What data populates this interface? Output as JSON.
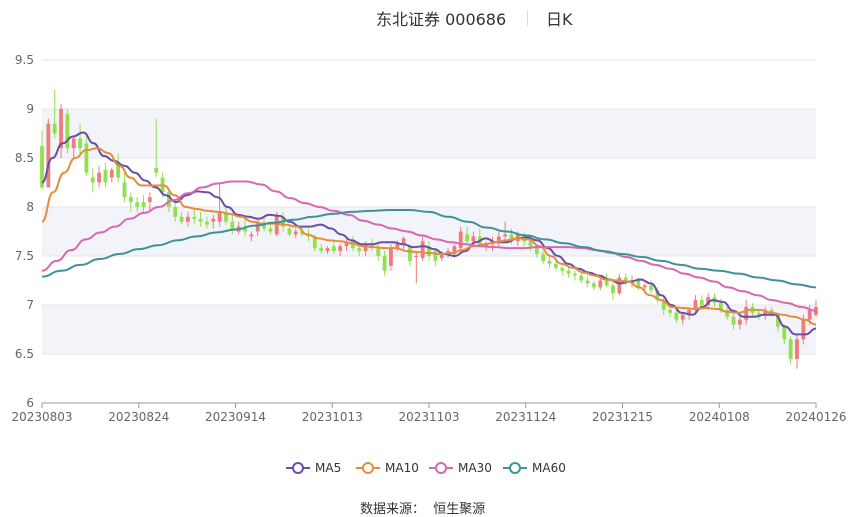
{
  "header": {
    "title": "东北证券 000686",
    "period": "日K"
  },
  "footer": {
    "source": "数据来源：  恒生聚源"
  },
  "colors": {
    "up": "#ef7b7b",
    "down": "#91e04d",
    "band": "#f3f4f9",
    "grid": "#e6e6e6",
    "ma5": "#6b4ea8",
    "ma10": "#e38e3a",
    "ma30": "#d769b4",
    "ma60": "#3f9296"
  },
  "chart_data": {
    "type": "candlestick",
    "title": "东北证券 000686 日K",
    "ylim": [
      6,
      9.5
    ],
    "y_ticks": [
      "9.5",
      "9",
      "8.5",
      "8",
      "7.5",
      "7",
      "6.5",
      "6"
    ],
    "x_ticks": [
      "20230803",
      "20230824",
      "20230914",
      "20231013",
      "20231103",
      "20231124",
      "20231215",
      "20240108",
      "20240126"
    ],
    "legend": [
      "MA5",
      "MA10",
      "MA30",
      "MA60"
    ],
    "legend_position": "bottom",
    "grid": true,
    "candles_ohlc": [
      [
        8.62,
        8.78,
        8.18,
        8.2
      ],
      [
        8.2,
        8.9,
        8.2,
        8.85
      ],
      [
        8.85,
        9.2,
        8.7,
        8.75
      ],
      [
        8.6,
        9.05,
        8.5,
        9.0
      ],
      [
        8.95,
        9.0,
        8.55,
        8.6
      ],
      [
        8.6,
        8.72,
        8.5,
        8.7
      ],
      [
        8.7,
        8.85,
        8.55,
        8.6
      ],
      [
        8.65,
        8.72,
        8.32,
        8.35
      ],
      [
        8.3,
        8.4,
        8.15,
        8.25
      ],
      [
        8.25,
        8.42,
        8.2,
        8.35
      ],
      [
        8.38,
        8.45,
        8.2,
        8.25
      ],
      [
        8.3,
        8.4,
        8.25,
        8.38
      ],
      [
        8.45,
        8.55,
        8.25,
        8.3
      ],
      [
        8.25,
        8.35,
        8.05,
        8.1
      ],
      [
        8.1,
        8.15,
        7.95,
        8.05
      ],
      [
        8.05,
        8.1,
        7.95,
        8.0
      ],
      [
        8.05,
        8.12,
        7.95,
        8.0
      ],
      [
        8.05,
        8.15,
        7.95,
        8.1
      ],
      [
        8.4,
        8.9,
        8.3,
        8.35
      ],
      [
        8.3,
        8.35,
        8.1,
        8.15
      ],
      [
        8.15,
        8.2,
        7.95,
        8.0
      ],
      [
        8.0,
        8.05,
        7.85,
        7.9
      ],
      [
        7.9,
        7.95,
        7.82,
        7.85
      ],
      [
        7.85,
        7.95,
        7.8,
        7.9
      ],
      [
        7.9,
        7.98,
        7.82,
        7.88
      ],
      [
        7.88,
        7.95,
        7.8,
        7.85
      ],
      [
        7.85,
        7.9,
        7.78,
        7.82
      ],
      [
        7.85,
        7.92,
        7.78,
        7.88
      ],
      [
        7.85,
        8.25,
        7.8,
        7.95
      ],
      [
        7.95,
        8.0,
        7.82,
        7.85
      ],
      [
        7.85,
        7.92,
        7.72,
        7.78
      ],
      [
        7.75,
        7.85,
        7.72,
        7.8
      ],
      [
        7.8,
        7.88,
        7.7,
        7.75
      ],
      [
        7.7,
        7.75,
        7.65,
        7.72
      ],
      [
        7.75,
        7.88,
        7.7,
        7.85
      ],
      [
        7.82,
        7.9,
        7.75,
        7.78
      ],
      [
        7.78,
        7.85,
        7.72,
        7.75
      ],
      [
        7.72,
        7.95,
        7.7,
        7.92
      ],
      [
        7.9,
        7.95,
        7.75,
        7.8
      ],
      [
        7.78,
        7.82,
        7.7,
        7.72
      ],
      [
        7.72,
        7.78,
        7.68,
        7.75
      ],
      [
        7.75,
        7.8,
        7.7,
        7.72
      ],
      [
        7.72,
        7.78,
        7.65,
        7.7
      ],
      [
        7.7,
        7.72,
        7.55,
        7.58
      ],
      [
        7.58,
        7.62,
        7.52,
        7.55
      ],
      [
        7.55,
        7.6,
        7.52,
        7.58
      ],
      [
        7.6,
        7.65,
        7.52,
        7.55
      ],
      [
        7.55,
        7.62,
        7.5,
        7.6
      ],
      [
        7.6,
        7.68,
        7.55,
        7.65
      ],
      [
        7.65,
        7.7,
        7.55,
        7.58
      ],
      [
        7.58,
        7.62,
        7.5,
        7.55
      ],
      [
        7.55,
        7.65,
        7.5,
        7.62
      ],
      [
        7.62,
        7.68,
        7.55,
        7.6
      ],
      [
        7.58,
        7.62,
        7.45,
        7.5
      ],
      [
        7.5,
        7.55,
        7.3,
        7.35
      ],
      [
        7.4,
        7.62,
        7.35,
        7.58
      ],
      [
        7.58,
        7.66,
        7.55,
        7.62
      ],
      [
        7.62,
        7.7,
        7.55,
        7.68
      ],
      [
        7.6,
        7.62,
        7.4,
        7.45
      ],
      [
        7.5,
        7.55,
        7.22,
        7.5
      ],
      [
        7.48,
        7.7,
        7.45,
        7.65
      ],
      [
        7.6,
        7.65,
        7.45,
        7.5
      ],
      [
        7.55,
        7.58,
        7.4,
        7.45
      ],
      [
        7.48,
        7.55,
        7.45,
        7.52
      ],
      [
        7.52,
        7.58,
        7.48,
        7.55
      ],
      [
        7.52,
        7.62,
        7.48,
        7.6
      ],
      [
        7.58,
        7.8,
        7.55,
        7.75
      ],
      [
        7.72,
        7.8,
        7.62,
        7.65
      ],
      [
        7.65,
        7.75,
        7.6,
        7.7
      ],
      [
        7.7,
        7.78,
        7.6,
        7.62
      ],
      [
        7.6,
        7.65,
        7.55,
        7.62
      ],
      [
        7.62,
        7.7,
        7.55,
        7.65
      ],
      [
        7.65,
        7.75,
        7.6,
        7.7
      ],
      [
        7.7,
        7.85,
        7.65,
        7.72
      ],
      [
        7.72,
        7.78,
        7.62,
        7.65
      ],
      [
        7.65,
        7.75,
        7.6,
        7.72
      ],
      [
        7.7,
        7.74,
        7.6,
        7.65
      ],
      [
        7.65,
        7.68,
        7.55,
        7.6
      ],
      [
        7.6,
        7.62,
        7.48,
        7.52
      ],
      [
        7.52,
        7.55,
        7.42,
        7.45
      ],
      [
        7.45,
        7.5,
        7.38,
        7.42
      ],
      [
        7.42,
        7.45,
        7.35,
        7.38
      ],
      [
        7.38,
        7.4,
        7.3,
        7.35
      ],
      [
        7.35,
        7.38,
        7.28,
        7.32
      ],
      [
        7.32,
        7.35,
        7.25,
        7.3
      ],
      [
        7.3,
        7.32,
        7.22,
        7.25
      ],
      [
        7.25,
        7.3,
        7.18,
        7.22
      ],
      [
        7.22,
        7.25,
        7.15,
        7.18
      ],
      [
        7.18,
        7.28,
        7.15,
        7.25
      ],
      [
        7.25,
        7.32,
        7.18,
        7.2
      ],
      [
        7.2,
        7.25,
        7.05,
        7.12
      ],
      [
        7.12,
        7.32,
        7.1,
        7.28
      ],
      [
        7.28,
        7.32,
        7.2,
        7.22
      ],
      [
        7.22,
        7.3,
        7.18,
        7.25
      ],
      [
        7.25,
        7.28,
        7.15,
        7.18
      ],
      [
        7.18,
        7.22,
        7.12,
        7.2
      ],
      [
        7.2,
        7.25,
        7.12,
        7.15
      ],
      [
        7.15,
        7.18,
        7.02,
        7.05
      ],
      [
        7.05,
        7.08,
        6.9,
        6.95
      ],
      [
        6.95,
        7.0,
        6.88,
        6.92
      ],
      [
        6.92,
        6.95,
        6.82,
        6.85
      ],
      [
        6.85,
        6.92,
        6.8,
        6.9
      ],
      [
        6.9,
        6.98,
        6.85,
        6.95
      ],
      [
        6.95,
        7.1,
        6.9,
        7.05
      ],
      [
        7.05,
        7.1,
        6.95,
        7.0
      ],
      [
        7.0,
        7.12,
        6.95,
        7.08
      ],
      [
        7.08,
        7.12,
        6.98,
        7.02
      ],
      [
        7.02,
        7.06,
        6.92,
        6.95
      ],
      [
        6.95,
        6.98,
        6.85,
        6.88
      ],
      [
        6.88,
        6.92,
        6.75,
        6.8
      ],
      [
        6.8,
        6.9,
        6.75,
        6.85
      ],
      [
        6.85,
        7.05,
        6.8,
        6.98
      ],
      [
        6.98,
        7.02,
        6.88,
        6.92
      ],
      [
        6.92,
        6.95,
        6.85,
        6.9
      ],
      [
        6.9,
        6.98,
        6.85,
        6.95
      ],
      [
        6.95,
        6.98,
        6.88,
        6.9
      ],
      [
        6.9,
        6.92,
        6.72,
        6.78
      ],
      [
        6.78,
        6.8,
        6.6,
        6.65
      ],
      [
        6.65,
        6.68,
        6.4,
        6.45
      ],
      [
        6.45,
        6.7,
        6.35,
        6.65
      ],
      [
        6.65,
        6.9,
        6.6,
        6.85
      ],
      [
        6.85,
        7.0,
        6.8,
        6.95
      ],
      [
        6.9,
        7.05,
        6.88,
        6.98
      ]
    ],
    "series": [
      {
        "name": "MA5",
        "values": [
          8.25,
          8.5,
          8.65,
          8.72,
          8.76,
          8.65,
          8.52,
          8.47,
          8.42,
          8.35,
          8.27,
          8.2,
          8.12,
          8.05,
          8.12,
          8.16,
          8.15,
          8.1,
          8.0,
          7.92,
          7.9,
          7.88,
          7.92,
          7.91,
          7.85,
          7.8,
          7.8,
          7.82,
          7.78,
          7.72,
          7.66,
          7.62,
          7.62,
          7.64,
          7.64,
          7.62,
          7.59,
          7.6,
          7.57,
          7.52,
          7.5,
          7.55,
          7.64,
          7.68,
          7.64,
          7.64,
          7.68,
          7.69,
          7.66,
          7.58,
          7.5,
          7.42,
          7.37,
          7.33,
          7.3,
          7.26,
          7.22,
          7.24,
          7.26,
          7.22,
          7.1,
          7.0,
          6.92,
          6.9,
          6.98,
          7.05,
          7.03,
          6.94,
          6.88,
          6.88,
          6.9,
          6.9,
          6.78,
          6.7,
          6.7,
          6.76
        ]
      },
      {
        "name": "MA10",
        "values": [
          7.85,
          8.15,
          8.35,
          8.5,
          8.58,
          8.6,
          8.55,
          8.42,
          8.3,
          8.22,
          8.22,
          8.22,
          8.12,
          8.0,
          7.98,
          7.96,
          7.95,
          7.93,
          7.9,
          7.85,
          7.83,
          7.83,
          7.82,
          7.8,
          7.72,
          7.68,
          7.66,
          7.65,
          7.63,
          7.6,
          7.59,
          7.58,
          7.58,
          7.55,
          7.54,
          7.53,
          7.52,
          7.53,
          7.56,
          7.6,
          7.62,
          7.64,
          7.66,
          7.68,
          7.67,
          7.6,
          7.5,
          7.42,
          7.38,
          7.33,
          7.3,
          7.26,
          7.25,
          7.24,
          7.18,
          7.1,
          7.05,
          6.98,
          6.97,
          6.96,
          6.97,
          6.96,
          6.93,
          6.92,
          6.95,
          6.95,
          6.92,
          6.9,
          6.88,
          6.85,
          6.8
        ]
      },
      {
        "name": "MA30",
        "values": [
          7.35,
          7.45,
          7.56,
          7.67,
          7.74,
          7.8,
          7.88,
          7.94,
          8.0,
          8.07,
          8.14,
          8.2,
          8.24,
          8.26,
          8.26,
          8.23,
          8.16,
          8.09,
          8.04,
          8.0,
          7.96,
          7.92,
          7.86,
          7.82,
          7.78,
          7.75,
          7.71,
          7.67,
          7.64,
          7.62,
          7.6,
          7.59,
          7.58,
          7.58,
          7.59,
          7.59,
          7.59,
          7.58,
          7.56,
          7.53,
          7.49,
          7.45,
          7.41,
          7.37,
          7.32,
          7.28,
          7.24,
          7.18,
          7.14,
          7.1,
          7.05,
          7.02,
          6.98,
          6.94
        ]
      },
      {
        "name": "MA60",
        "values": [
          7.29,
          7.35,
          7.41,
          7.47,
          7.52,
          7.57,
          7.61,
          7.66,
          7.7,
          7.74,
          7.77,
          7.81,
          7.84,
          7.87,
          7.9,
          7.93,
          7.95,
          7.96,
          7.97,
          7.97,
          7.95,
          7.9,
          7.85,
          7.79,
          7.75,
          7.71,
          7.67,
          7.63,
          7.59,
          7.55,
          7.52,
          7.49,
          7.45,
          7.41,
          7.37,
          7.35,
          7.32,
          7.28,
          7.25,
          7.21,
          7.18
        ]
      }
    ]
  }
}
